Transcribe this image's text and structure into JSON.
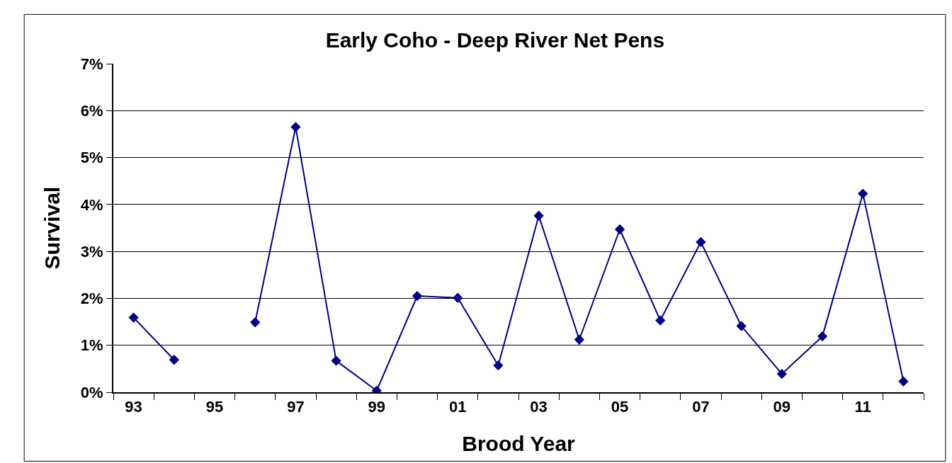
{
  "chart_data": {
    "type": "line",
    "title": "Early Coho - Deep River Net Pens",
    "xlabel": "Brood Year",
    "ylabel": "Survival",
    "categories": [
      "93",
      null,
      "95",
      null,
      "97",
      null,
      "99",
      null,
      "01",
      null,
      "03",
      null,
      "05",
      null,
      "07",
      null,
      "09",
      null,
      "11",
      null
    ],
    "series": [
      {
        "color": "#000080",
        "values": [
          1.59,
          0.69,
          null,
          1.49,
          5.65,
          0.67,
          0.03,
          2.05,
          2.01,
          0.57,
          3.76,
          1.12,
          3.47,
          1.53,
          3.2,
          1.41,
          0.39,
          1.19,
          4.23,
          0.23
        ]
      }
    ],
    "ylim": [
      0,
      7
    ],
    "yticks": [
      {
        "value": 0,
        "label": "0%"
      },
      {
        "value": 1,
        "label": "1%"
      },
      {
        "value": 2,
        "label": "2%"
      },
      {
        "value": 3,
        "label": "3%"
      },
      {
        "value": 4,
        "label": "4%"
      },
      {
        "value": 5,
        "label": "5%"
      },
      {
        "value": 6,
        "label": "6%"
      },
      {
        "value": 7,
        "label": "7%"
      }
    ],
    "grid": "y",
    "marker": "diamond",
    "line_style": "solid"
  }
}
